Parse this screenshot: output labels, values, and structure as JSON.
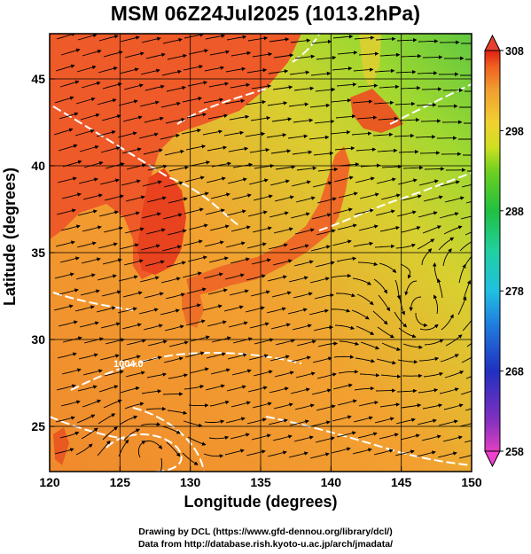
{
  "title": "MSM 06Z24Jul2025 (1013.2hPa)",
  "xaxis": {
    "label": "Longitude (degrees)",
    "ticks": [
      "120",
      "125",
      "130",
      "135",
      "140",
      "145",
      "150"
    ],
    "range": [
      120,
      150
    ]
  },
  "yaxis": {
    "label": "Latitude  (degrees)",
    "ticks": [
      "25",
      "30",
      "35",
      "40",
      "45"
    ],
    "range": [
      22.4,
      47.6
    ]
  },
  "colorbar": {
    "ticks": [
      "308",
      "298",
      "288",
      "278",
      "268",
      "258"
    ],
    "range": [
      258,
      308
    ],
    "colors": [
      "#e040c0",
      "#8030c0",
      "#2030c0",
      "#2080e0",
      "#20c0e0",
      "#20d0a0",
      "#20c040",
      "#70d020",
      "#d0e020",
      "#f0d030",
      "#f0a030",
      "#f06020",
      "#e02010"
    ]
  },
  "contour_labels": [
    "1004.0"
  ],
  "credits": [
    "Drawing by DCL (https://www.gfd-dennou.org/library/dcl/)",
    "Data from http://database.rish.kyoto-u.ac.jp/arch/jmadata/"
  ]
}
